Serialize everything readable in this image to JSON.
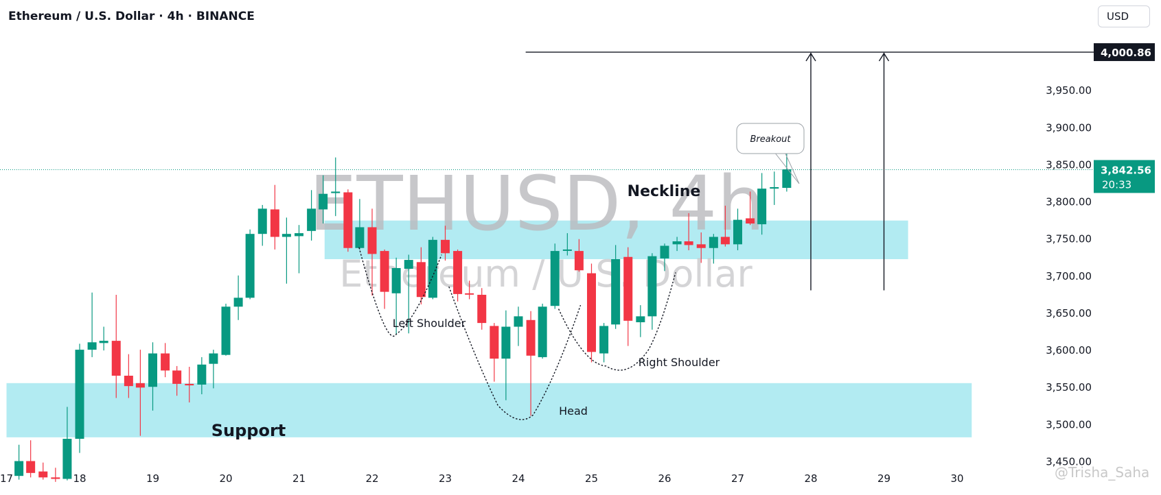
{
  "header": {
    "title": "Ethereum / U.S. Dollar · 4h · BINANCE",
    "currency_button": "USD"
  },
  "watermark": {
    "symbol": "ETHUSD, 4h",
    "name": "Ethereum / U.S. Dollar"
  },
  "credit": "@Trisha_Saha",
  "colors": {
    "up": "#089981",
    "down": "#f23645",
    "zone": "#b2ebf2",
    "last_price_bg": "#089981",
    "target_bg": "#131722"
  },
  "chart_data": {
    "type": "candlestick",
    "title": "Ethereum / U.S. Dollar · 4h · BINANCE",
    "ylim": [
      3420,
      4060
    ],
    "y_ticks": [
      3450,
      3500,
      3550,
      3600,
      3650,
      3700,
      3750,
      3800,
      3850,
      3900,
      3950
    ],
    "y_tick_labels": [
      "3,450.00",
      "3,500.00",
      "3,550.00",
      "3,600.00",
      "3,650.00",
      "3,700.00",
      "3,750.00",
      "3,800.00",
      "3,850.00",
      "3,900.00",
      "3,950.00"
    ],
    "x_ticks": [
      {
        "x": 17,
        "label": "17"
      },
      {
        "x": 18,
        "label": "18"
      },
      {
        "x": 19,
        "label": "19"
      },
      {
        "x": 20,
        "label": "20"
      },
      {
        "x": 21,
        "label": "21"
      },
      {
        "x": 22,
        "label": "22"
      },
      {
        "x": 23,
        "label": "23"
      },
      {
        "x": 24,
        "label": "24"
      },
      {
        "x": 25,
        "label": "25"
      },
      {
        "x": 26,
        "label": "26"
      },
      {
        "x": 27,
        "label": "27"
      },
      {
        "x": 28,
        "label": "28"
      },
      {
        "x": 29,
        "label": "29"
      },
      {
        "x": 30,
        "label": "30"
      }
    ],
    "x_range": [
      17,
      30.2
    ],
    "candles": [
      {
        "x": 17.17,
        "o": 3430,
        "h": 3472,
        "l": 3425,
        "c": 3450
      },
      {
        "x": 17.33,
        "o": 3450,
        "h": 3478,
        "l": 3428,
        "c": 3434
      },
      {
        "x": 17.5,
        "o": 3436,
        "h": 3448,
        "l": 3425,
        "c": 3428
      },
      {
        "x": 17.67,
        "o": 3428,
        "h": 3441,
        "l": 3422,
        "c": 3426
      },
      {
        "x": 17.83,
        "o": 3426,
        "h": 3523,
        "l": 3424,
        "c": 3480
      },
      {
        "x": 18.0,
        "o": 3480,
        "h": 3608,
        "l": 3461,
        "c": 3600
      },
      {
        "x": 18.17,
        "o": 3600,
        "h": 3677,
        "l": 3590,
        "c": 3610
      },
      {
        "x": 18.33,
        "o": 3609,
        "h": 3631,
        "l": 3599,
        "c": 3612
      },
      {
        "x": 18.5,
        "o": 3612,
        "h": 3674,
        "l": 3535,
        "c": 3565
      },
      {
        "x": 18.67,
        "o": 3565,
        "h": 3594,
        "l": 3535,
        "c": 3551
      },
      {
        "x": 18.83,
        "o": 3555,
        "h": 3600,
        "l": 3484,
        "c": 3549
      },
      {
        "x": 19.0,
        "o": 3550,
        "h": 3610,
        "l": 3518,
        "c": 3595
      },
      {
        "x": 19.17,
        "o": 3595,
        "h": 3609,
        "l": 3563,
        "c": 3572
      },
      {
        "x": 19.33,
        "o": 3572,
        "h": 3578,
        "l": 3538,
        "c": 3554
      },
      {
        "x": 19.5,
        "o": 3554,
        "h": 3577,
        "l": 3529,
        "c": 3552
      },
      {
        "x": 19.67,
        "o": 3553,
        "h": 3590,
        "l": 3540,
        "c": 3580
      },
      {
        "x": 19.83,
        "o": 3581,
        "h": 3600,
        "l": 3548,
        "c": 3595
      },
      {
        "x": 20.0,
        "o": 3593,
        "h": 3662,
        "l": 3592,
        "c": 3658
      },
      {
        "x": 20.17,
        "o": 3658,
        "h": 3700,
        "l": 3640,
        "c": 3670
      },
      {
        "x": 20.33,
        "o": 3670,
        "h": 3762,
        "l": 3668,
        "c": 3756
      },
      {
        "x": 20.5,
        "o": 3756,
        "h": 3795,
        "l": 3740,
        "c": 3790
      },
      {
        "x": 20.67,
        "o": 3789,
        "h": 3822,
        "l": 3735,
        "c": 3752
      },
      {
        "x": 20.83,
        "o": 3752,
        "h": 3778,
        "l": 3689,
        "c": 3756
      },
      {
        "x": 21.0,
        "o": 3753,
        "h": 3768,
        "l": 3703,
        "c": 3757
      },
      {
        "x": 21.17,
        "o": 3760,
        "h": 3815,
        "l": 3747,
        "c": 3790
      },
      {
        "x": 21.33,
        "o": 3789,
        "h": 3835,
        "l": 3770,
        "c": 3810
      },
      {
        "x": 21.5,
        "o": 3811,
        "h": 3859,
        "l": 3780,
        "c": 3813
      },
      {
        "x": 21.67,
        "o": 3812,
        "h": 3816,
        "l": 3732,
        "c": 3737
      },
      {
        "x": 21.83,
        "o": 3737,
        "h": 3803,
        "l": 3735,
        "c": 3765
      },
      {
        "x": 22.0,
        "o": 3765,
        "h": 3790,
        "l": 3673,
        "c": 3729
      },
      {
        "x": 22.17,
        "o": 3733,
        "h": 3735,
        "l": 3655,
        "c": 3678
      },
      {
        "x": 22.33,
        "o": 3676,
        "h": 3724,
        "l": 3620,
        "c": 3710
      },
      {
        "x": 22.5,
        "o": 3709,
        "h": 3728,
        "l": 3622,
        "c": 3721
      },
      {
        "x": 22.67,
        "o": 3718,
        "h": 3738,
        "l": 3661,
        "c": 3671
      },
      {
        "x": 22.83,
        "o": 3670,
        "h": 3752,
        "l": 3668,
        "c": 3748
      },
      {
        "x": 23.0,
        "o": 3748,
        "h": 3767,
        "l": 3720,
        "c": 3730
      },
      {
        "x": 23.17,
        "o": 3733,
        "h": 3735,
        "l": 3665,
        "c": 3675
      },
      {
        "x": 23.33,
        "o": 3676,
        "h": 3693,
        "l": 3668,
        "c": 3675
      },
      {
        "x": 23.5,
        "o": 3674,
        "h": 3683,
        "l": 3627,
        "c": 3636
      },
      {
        "x": 23.67,
        "o": 3632,
        "h": 3636,
        "l": 3557,
        "c": 3588
      },
      {
        "x": 23.83,
        "o": 3588,
        "h": 3653,
        "l": 3532,
        "c": 3631
      },
      {
        "x": 24.0,
        "o": 3631,
        "h": 3658,
        "l": 3605,
        "c": 3645
      },
      {
        "x": 24.17,
        "o": 3640,
        "h": 3652,
        "l": 3511,
        "c": 3592
      },
      {
        "x": 24.33,
        "o": 3590,
        "h": 3662,
        "l": 3588,
        "c": 3658
      },
      {
        "x": 24.5,
        "o": 3659,
        "h": 3743,
        "l": 3655,
        "c": 3733
      },
      {
        "x": 24.67,
        "o": 3735,
        "h": 3757,
        "l": 3727,
        "c": 3735
      },
      {
        "x": 24.83,
        "o": 3733,
        "h": 3749,
        "l": 3705,
        "c": 3707
      },
      {
        "x": 25.0,
        "o": 3703,
        "h": 3716,
        "l": 3583,
        "c": 3597
      },
      {
        "x": 25.17,
        "o": 3595,
        "h": 3636,
        "l": 3583,
        "c": 3632
      },
      {
        "x": 25.33,
        "o": 3634,
        "h": 3741,
        "l": 3628,
        "c": 3722
      },
      {
        "x": 25.5,
        "o": 3725,
        "h": 3738,
        "l": 3605,
        "c": 3639
      },
      {
        "x": 25.67,
        "o": 3637,
        "h": 3660,
        "l": 3617,
        "c": 3645
      },
      {
        "x": 25.83,
        "o": 3645,
        "h": 3730,
        "l": 3627,
        "c": 3726
      },
      {
        "x": 26.0,
        "o": 3723,
        "h": 3743,
        "l": 3706,
        "c": 3740
      },
      {
        "x": 26.17,
        "o": 3742,
        "h": 3752,
        "l": 3733,
        "c": 3746
      },
      {
        "x": 26.33,
        "o": 3746,
        "h": 3784,
        "l": 3734,
        "c": 3741
      },
      {
        "x": 26.5,
        "o": 3742,
        "h": 3758,
        "l": 3717,
        "c": 3737
      },
      {
        "x": 26.67,
        "o": 3737,
        "h": 3756,
        "l": 3716,
        "c": 3752
      },
      {
        "x": 26.83,
        "o": 3752,
        "h": 3794,
        "l": 3739,
        "c": 3742
      },
      {
        "x": 27.0,
        "o": 3742,
        "h": 3790,
        "l": 3734,
        "c": 3775
      },
      {
        "x": 27.17,
        "o": 3777,
        "h": 3813,
        "l": 3768,
        "c": 3770
      },
      {
        "x": 27.33,
        "o": 3769,
        "h": 3838,
        "l": 3755,
        "c": 3817
      },
      {
        "x": 27.5,
        "o": 3817,
        "h": 3840,
        "l": 3795,
        "c": 3819
      },
      {
        "x": 27.67,
        "o": 3818,
        "h": 3869,
        "l": 3813,
        "c": 3843
      }
    ],
    "zones": [
      {
        "name": "Neckline",
        "from": 3722,
        "to": 3774,
        "x_start": 21.35,
        "x_end": 29.33
      },
      {
        "name": "Support",
        "from": 3482,
        "to": 3555,
        "x_start": 17,
        "x_end": 30.2
      }
    ],
    "labels": {
      "neckline": "Neckline",
      "support": "Support",
      "left_shoulder": "Left Shoulder",
      "head": "Head",
      "right_shoulder": "Right Shoulder",
      "breakout": "Breakout"
    },
    "target": {
      "value": 4000.86,
      "label": "4,000.86",
      "x_start": 24.1
    },
    "last_price": {
      "value": 3842.56,
      "label": "3,842.56",
      "countdown": "20:33"
    },
    "arrows": [
      {
        "x": 28.0,
        "from": 3680,
        "to": 4000
      },
      {
        "x": 29.0,
        "from": 3680,
        "to": 4000
      }
    ]
  }
}
